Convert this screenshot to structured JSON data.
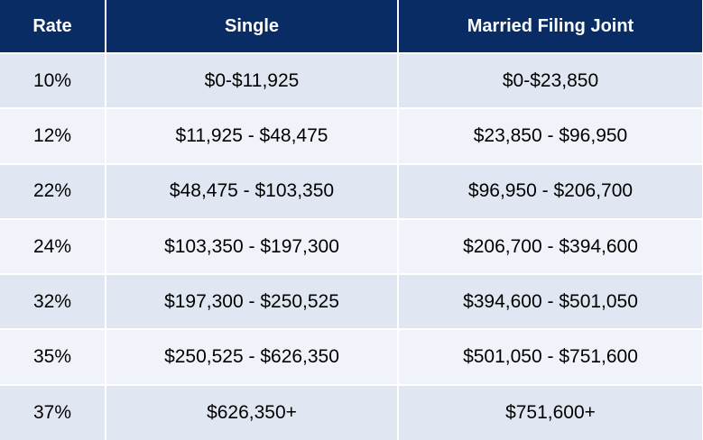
{
  "table": {
    "headers": {
      "rate": "Rate",
      "single": "Single",
      "married": "Married Filing Joint"
    },
    "rows": [
      {
        "rate": "10%",
        "single": "$0-$11,925",
        "married": "$0-$23,850"
      },
      {
        "rate": "12%",
        "single": "$11,925 - $48,475",
        "married": "$23,850 - $96,950"
      },
      {
        "rate": "22%",
        "single": "$48,475 - $103,350",
        "married": "$96,950 - $206,700"
      },
      {
        "rate": "24%",
        "single": "$103,350 - $197,300",
        "married": "$206,700 - $394,600"
      },
      {
        "rate": "32%",
        "single": "$197,300 - $250,525",
        "married": "$394,600 - $501,050"
      },
      {
        "rate": "35%",
        "single": "$250,525 - $626,350",
        "married": "$501,050 - $751,600"
      },
      {
        "rate": "37%",
        "single": "$626,350+",
        "married": "$751,600+"
      }
    ]
  },
  "colors": {
    "header_bg": "#0a2c64",
    "header_text": "#ffffff",
    "row_odd_bg": "#e0e7f2",
    "row_even_bg": "#f0f3f9",
    "cell_border": "#ffffff"
  }
}
